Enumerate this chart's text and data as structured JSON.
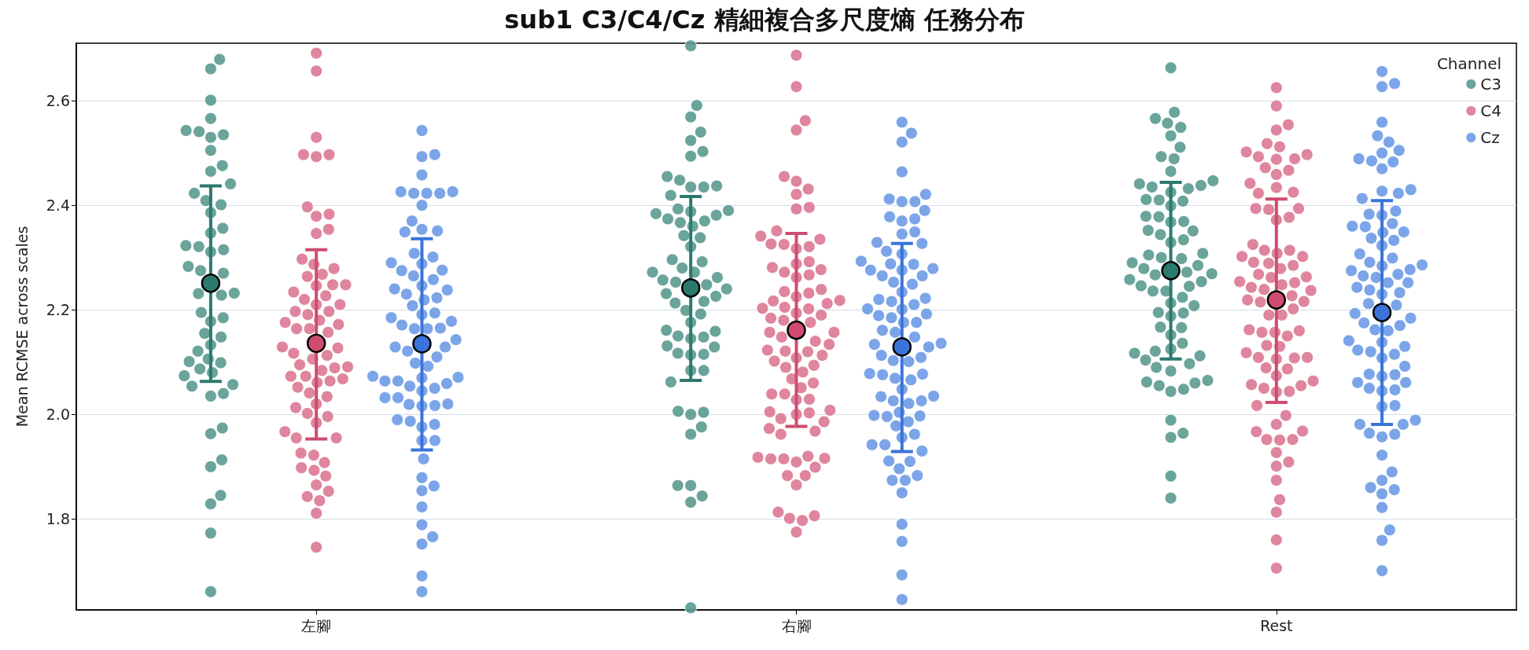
{
  "chart_data": {
    "type": "scatter",
    "title": "sub1 C3/C4/Cz 精細複合多尺度熵 任務分布",
    "ylabel": "Mean RCMSE across scales",
    "legend_title": "Channel",
    "legend": "top right",
    "grid": "y",
    "marker": "circle",
    "categories": [
      "左腳",
      "右腳",
      "Rest"
    ],
    "ylim": [
      1.626,
      2.71
    ],
    "yticks": [
      1.8,
      {
        "value": 2,
        "label": "2.0"
      },
      2.2,
      2.4,
      2.6
    ],
    "series": [
      {
        "name": "C3",
        "color": "#5a9a90",
        "x": [
          "左腳",
          "左腳",
          "左腳",
          "左腳",
          "左腳",
          "左腳",
          "左腳",
          "左腳",
          "左腳",
          "左腳",
          "左腳",
          "左腳",
          "左腳",
          "左腳",
          "左腳",
          "左腳",
          "左腳",
          "左腳",
          "左腳",
          "左腳",
          "左腳",
          "左腳",
          "左腳",
          "左腳",
          "左腳",
          "左腳",
          "左腳",
          "左腳",
          "左腳",
          "左腳",
          "左腳",
          "左腳",
          "左腳",
          "左腳",
          "左腳",
          "左腳",
          "左腳",
          "左腳",
          "左腳",
          "左腳",
          "左腳",
          "左腳",
          "左腳",
          "左腳",
          "左腳",
          "左腳",
          "左腳",
          "左腳",
          "左腳",
          "左腳",
          "左腳",
          "左腳",
          "左腳",
          "右腳",
          "右腳",
          "右腳",
          "右腳",
          "右腳",
          "右腳",
          "右腳",
          "右腳",
          "右腳",
          "右腳",
          "右腳",
          "右腳",
          "右腳",
          "右腳",
          "右腳",
          "右腳",
          "右腳",
          "右腳",
          "右腳",
          "右腳",
          "右腳",
          "右腳",
          "右腳",
          "右腳",
          "右腳",
          "右腳",
          "右腳",
          "右腳",
          "右腳",
          "右腳",
          "右腳",
          "右腳",
          "右腳",
          "右腳",
          "右腳",
          "右腳",
          "右腳",
          "右腳",
          "右腳",
          "右腳",
          "右腳",
          "右腳",
          "右腳",
          "右腳",
          "右腳",
          "右腳",
          "右腳",
          "右腳",
          "右腳",
          "右腳",
          "右腳",
          "右腳",
          "右腳",
          "右腳",
          "右腳",
          "右腳",
          "右腳",
          "右腳",
          "右腳",
          "右腳",
          "右腳",
          "右腳",
          "右腳",
          "右腳",
          "右腳",
          "Rest",
          "Rest",
          "Rest",
          "Rest",
          "Rest",
          "Rest",
          "Rest",
          "Rest",
          "Rest",
          "Rest",
          "Rest",
          "Rest",
          "Rest",
          "Rest",
          "Rest",
          "Rest",
          "Rest",
          "Rest",
          "Rest",
          "Rest",
          "Rest",
          "Rest",
          "Rest",
          "Rest",
          "Rest",
          "Rest",
          "Rest",
          "Rest",
          "Rest",
          "Rest",
          "Rest",
          "Rest",
          "Rest",
          "Rest",
          "Rest",
          "Rest",
          "Rest",
          "Rest",
          "Rest",
          "Rest",
          "Rest",
          "Rest",
          "Rest",
          "Rest",
          "Rest",
          "Rest",
          "Rest",
          "Rest",
          "Rest",
          "Rest",
          "Rest",
          "Rest",
          "Rest",
          "Rest",
          "Rest",
          "Rest",
          "Rest",
          "Rest",
          "Rest",
          "Rest",
          "Rest",
          "Rest",
          "Rest",
          "Rest",
          "Rest",
          "Rest",
          "Rest",
          "Rest",
          "Rest",
          "Rest",
          "Rest",
          "Rest",
          "Rest",
          "Rest"
        ],
        "values": [
          2.679,
          2.661,
          2.601,
          2.566,
          2.541,
          2.543,
          2.535,
          2.53,
          2.505,
          2.476,
          2.465,
          2.441,
          2.423,
          2.401,
          2.409,
          2.386,
          2.356,
          2.347,
          2.323,
          2.321,
          2.315,
          2.311,
          2.283,
          2.275,
          2.27,
          2.232,
          2.231,
          2.228,
          2.195,
          2.185,
          2.178,
          2.155,
          2.148,
          2.133,
          2.121,
          2.106,
          2.099,
          2.101,
          2.087,
          2.08,
          2.074,
          2.057,
          2.054,
          2.035,
          2.04,
          1.963,
          1.974,
          1.913,
          1.9,
          1.845,
          1.829,
          1.773,
          1.661,
          2.705,
          2.591,
          2.569,
          2.54,
          2.524,
          2.503,
          2.494,
          2.419,
          2.455,
          2.448,
          2.437,
          2.435,
          2.435,
          2.393,
          2.388,
          2.384,
          2.381,
          2.374,
          2.37,
          2.39,
          2.367,
          2.36,
          2.342,
          2.338,
          2.321,
          2.292,
          2.296,
          2.272,
          2.272,
          2.28,
          2.262,
          2.257,
          2.253,
          2.248,
          2.24,
          2.226,
          2.231,
          2.216,
          2.213,
          2.199,
          2.192,
          2.176,
          2.161,
          2.15,
          2.145,
          2.148,
          2.159,
          2.129,
          2.131,
          2.117,
          2.115,
          2.114,
          2.084,
          2.084,
          2.062,
          2.0,
          2.006,
          2.004,
          1.976,
          1.962,
          1.864,
          1.864,
          1.844,
          1.832,
          1.63,
          2.663,
          2.578,
          2.566,
          2.557,
          2.549,
          2.533,
          2.511,
          2.493,
          2.489,
          2.465,
          2.447,
          2.441,
          2.435,
          2.438,
          2.432,
          2.425,
          2.411,
          2.408,
          2.41,
          2.399,
          2.379,
          2.378,
          2.369,
          2.368,
          2.351,
          2.352,
          2.344,
          2.334,
          2.329,
          2.308,
          2.305,
          2.298,
          2.3,
          2.285,
          2.29,
          2.279,
          2.272,
          2.269,
          2.267,
          2.258,
          2.254,
          2.245,
          2.246,
          2.236,
          2.236,
          2.224,
          2.213,
          2.208,
          2.195,
          2.188,
          2.194,
          2.166,
          2.167,
          2.152,
          2.136,
          2.125,
          2.121,
          2.112,
          2.117,
          2.104,
          2.097,
          2.09,
          2.083,
          2.065,
          2.062,
          2.06,
          2.055,
          2.048,
          2.044,
          1.989,
          1.964,
          1.956,
          1.882,
          1.84
        ]
      },
      {
        "name": "C4",
        "color": "#dc7893",
        "x": [
          "左腳",
          "左腳",
          "左腳",
          "左腳",
          "左腳",
          "左腳",
          "左腳",
          "左腳",
          "左腳",
          "左腳",
          "左腳",
          "左腳",
          "左腳",
          "左腳",
          "左腳",
          "左腳",
          "左腳",
          "左腳",
          "左腳",
          "左腳",
          "左腳",
          "左腳",
          "左腳",
          "左腳",
          "左腳",
          "左腳",
          "左腳",
          "左腳",
          "左腳",
          "左腳",
          "左腳",
          "左腳",
          "左腳",
          "左腳",
          "左腳",
          "左腳",
          "左腳",
          "左腳",
          "左腳",
          "左腳",
          "左腳",
          "左腳",
          "左腳",
          "左腳",
          "左腳",
          "左腳",
          "左腳",
          "左腳",
          "左腳",
          "左腳",
          "左腳",
          "左腳",
          "左腳",
          "左腳",
          "左腳",
          "左腳",
          "左腳",
          "左腳",
          "左腳",
          "左腳",
          "左腳",
          "左腳",
          "左腳",
          "左腳",
          "左腳",
          "左腳",
          "左腳",
          "左腳",
          "左腳",
          "左腳",
          "右腳",
          "右腳",
          "右腳",
          "右腳",
          "右腳",
          "右腳",
          "右腳",
          "右腳",
          "右腳",
          "右腳",
          "右腳",
          "右腳",
          "右腳",
          "右腳",
          "右腳",
          "右腳",
          "右腳",
          "右腳",
          "右腳",
          "右腳",
          "右腳",
          "右腳",
          "右腳",
          "右腳",
          "右腳",
          "右腳",
          "右腳",
          "右腳",
          "右腳",
          "右腳",
          "右腳",
          "右腳",
          "右腳",
          "右腳",
          "右腳",
          "右腳",
          "右腳",
          "右腳",
          "右腳",
          "右腳",
          "右腳",
          "右腳",
          "右腳",
          "右腳",
          "右腳",
          "右腳",
          "右腳",
          "右腳",
          "右腳",
          "右腳",
          "右腳",
          "右腳",
          "右腳",
          "右腳",
          "右腳",
          "右腳",
          "右腳",
          "右腳",
          "右腳",
          "右腳",
          "右腳",
          "右腳",
          "右腳",
          "右腳",
          "右腳",
          "右腳",
          "右腳",
          "右腳",
          "右腳",
          "右腳",
          "右腳",
          "右腳",
          "右腳",
          "右腳",
          "右腳",
          "右腳",
          "右腳",
          "右腳",
          "右腳",
          "右腳",
          "右腳",
          "右腳",
          "右腳",
          "右腳",
          "Rest",
          "Rest",
          "Rest",
          "Rest",
          "Rest",
          "Rest",
          "Rest",
          "Rest",
          "Rest",
          "Rest",
          "Rest",
          "Rest",
          "Rest",
          "Rest",
          "Rest",
          "Rest",
          "Rest",
          "Rest",
          "Rest",
          "Rest",
          "Rest",
          "Rest",
          "Rest",
          "Rest",
          "Rest",
          "Rest",
          "Rest",
          "Rest",
          "Rest",
          "Rest",
          "Rest",
          "Rest",
          "Rest",
          "Rest",
          "Rest",
          "Rest",
          "Rest",
          "Rest",
          "Rest",
          "Rest",
          "Rest",
          "Rest",
          "Rest",
          "Rest",
          "Rest",
          "Rest",
          "Rest",
          "Rest",
          "Rest",
          "Rest",
          "Rest",
          "Rest",
          "Rest",
          "Rest",
          "Rest",
          "Rest",
          "Rest",
          "Rest",
          "Rest",
          "Rest",
          "Rest",
          "Rest",
          "Rest",
          "Rest",
          "Rest",
          "Rest",
          "Rest",
          "Rest",
          "Rest",
          "Rest",
          "Rest",
          "Rest",
          "Rest",
          "Rest",
          "Rest",
          "Rest",
          "Rest",
          "Rest",
          "Rest",
          "Rest",
          "Rest",
          "Rest",
          "Rest",
          "Rest",
          "Rest",
          "Rest"
        ],
        "values": [
          2.691,
          2.657,
          2.53,
          2.497,
          2.493,
          2.497,
          2.397,
          2.379,
          2.383,
          2.354,
          2.346,
          2.297,
          2.287,
          2.279,
          2.268,
          2.264,
          2.248,
          2.248,
          2.246,
          2.234,
          2.227,
          2.22,
          2.21,
          2.21,
          2.197,
          2.197,
          2.191,
          2.176,
          2.18,
          2.172,
          2.164,
          2.164,
          2.157,
          2.129,
          2.127,
          2.113,
          2.117,
          2.106,
          2.095,
          2.091,
          2.089,
          2.084,
          2.061,
          2.064,
          2.073,
          2.073,
          2.068,
          2.052,
          2.041,
          2.034,
          2.02,
          2.013,
          2.002,
          1.996,
          1.984,
          1.967,
          1.955,
          1.955,
          1.926,
          1.922,
          1.908,
          1.893,
          1.898,
          1.882,
          1.865,
          1.853,
          1.843,
          1.835,
          1.811,
          1.746,
          2.687,
          2.627,
          2.562,
          2.544,
          2.446,
          2.455,
          2.431,
          2.421,
          2.396,
          2.393,
          2.351,
          2.335,
          2.341,
          2.325,
          2.326,
          2.317,
          2.321,
          2.292,
          2.288,
          2.277,
          2.281,
          2.272,
          2.267,
          2.262,
          2.239,
          2.232,
          2.235,
          2.225,
          2.218,
          2.217,
          2.212,
          2.205,
          2.202,
          2.203,
          2.194,
          2.19,
          2.184,
          2.18,
          2.176,
          2.157,
          2.157,
          2.148,
          2.134,
          2.14,
          2.121,
          2.123,
          2.12,
          2.108,
          2.113,
          2.102,
          2.094,
          2.09,
          2.081,
          2.068,
          2.06,
          2.051,
          2.039,
          2.039,
          2.029,
          2.028,
          2.003,
          2.0,
          2.005,
          2.008,
          1.992,
          1.986,
          1.973,
          1.968,
          1.962,
          1.918,
          1.915,
          1.92,
          1.916,
          1.909,
          1.915,
          1.899,
          1.883,
          1.883,
          1.865,
          1.813,
          1.806,
          1.801,
          1.797,
          1.775,
          2.625,
          2.59,
          2.554,
          2.544,
          2.512,
          2.518,
          2.502,
          2.493,
          2.497,
          2.488,
          2.489,
          2.467,
          2.472,
          2.459,
          2.442,
          2.434,
          2.423,
          2.425,
          2.394,
          2.392,
          2.394,
          2.377,
          2.372,
          2.325,
          2.314,
          2.308,
          2.314,
          2.302,
          2.302,
          2.291,
          2.289,
          2.285,
          2.279,
          2.262,
          2.268,
          2.263,
          2.254,
          2.252,
          2.248,
          2.239,
          2.243,
          2.237,
          2.227,
          2.216,
          2.215,
          2.219,
          2.202,
          2.19,
          2.19,
          2.16,
          2.157,
          2.162,
          2.15,
          2.157,
          2.132,
          2.118,
          2.13,
          2.109,
          2.106,
          2.108,
          2.109,
          2.089,
          2.087,
          2.074,
          2.064,
          2.057,
          2.05,
          2.055,
          2.044,
          2.043,
          2.017,
          1.998,
          1.981,
          1.967,
          1.968,
          1.952,
          1.952,
          1.951,
          1.927,
          1.909,
          1.901,
          1.874,
          1.837,
          1.813,
          1.76,
          1.706
        ]
      },
      {
        "name": "Cz",
        "color": "#6d9be6",
        "x": [
          "左腳",
          "左腳",
          "左腳",
          "左腳",
          "左腳",
          "左腳",
          "左腳",
          "左腳",
          "左腳",
          "左腳",
          "左腳",
          "左腳",
          "左腳",
          "左腳",
          "左腳",
          "左腳",
          "左腳",
          "左腳",
          "左腳",
          "左腳",
          "左腳",
          "左腳",
          "左腳",
          "左腳",
          "左腳",
          "左腳",
          "左腳",
          "左腳",
          "左腳",
          "左腳",
          "左腳",
          "左腳",
          "左腳",
          "左腳",
          "左腳",
          "左腳",
          "左腳",
          "左腳",
          "左腳",
          "左腳",
          "左腳",
          "左腳",
          "左腳",
          "左腳",
          "左腳",
          "左腳",
          "左腳",
          "左腳",
          "左腳",
          "左腳",
          "左腳",
          "左腳",
          "左腳",
          "左腳",
          "左腳",
          "左腳",
          "左腳",
          "左腳",
          "左腳",
          "左腳",
          "左腳",
          "左腳",
          "左腳",
          "左腳",
          "左腳",
          "左腳",
          "左腳",
          "左腳",
          "左腳",
          "左腳",
          "左腳",
          "左腳",
          "左腳",
          "左腳",
          "左腳",
          "右腳",
          "右腳",
          "右腳",
          "右腳",
          "右腳",
          "右腳",
          "右腳",
          "右腳",
          "右腳",
          "右腳",
          "右腳",
          "右腳",
          "右腳",
          "右腳",
          "右腳",
          "右腳",
          "右腳",
          "右腳",
          "右腳",
          "右腳",
          "右腳",
          "右腳",
          "右腳",
          "右腳",
          "右腳",
          "右腳",
          "右腳",
          "右腳",
          "右腳",
          "右腳",
          "右腳",
          "右腳",
          "右腳",
          "右腳",
          "右腳",
          "右腳",
          "右腳",
          "右腳",
          "右腳",
          "右腳",
          "右腳",
          "右腳",
          "右腳",
          "右腳",
          "右腳",
          "右腳",
          "右腳",
          "右腳",
          "右腳",
          "右腳",
          "右腳",
          "右腳",
          "右腳",
          "右腳",
          "右腳",
          "右腳",
          "右腳",
          "右腳",
          "右腳",
          "右腳",
          "右腳",
          "右腳",
          "右腳",
          "右腳",
          "右腳",
          "右腳",
          "右腳",
          "右腳",
          "右腳",
          "右腳",
          "右腳",
          "右腳",
          "右腳",
          "右腳",
          "右腳",
          "右腳",
          "右腳",
          "右腳",
          "右腳",
          "右腳",
          "右腳",
          "右腳",
          "右腳",
          "Rest",
          "Rest",
          "Rest",
          "Rest",
          "Rest",
          "Rest",
          "Rest",
          "Rest",
          "Rest",
          "Rest",
          "Rest",
          "Rest",
          "Rest",
          "Rest",
          "Rest",
          "Rest",
          "Rest",
          "Rest",
          "Rest",
          "Rest",
          "Rest",
          "Rest",
          "Rest",
          "Rest",
          "Rest",
          "Rest",
          "Rest",
          "Rest",
          "Rest",
          "Rest",
          "Rest",
          "Rest",
          "Rest",
          "Rest",
          "Rest",
          "Rest",
          "Rest",
          "Rest",
          "Rest",
          "Rest",
          "Rest",
          "Rest",
          "Rest",
          "Rest",
          "Rest",
          "Rest",
          "Rest",
          "Rest",
          "Rest",
          "Rest",
          "Rest",
          "Rest",
          "Rest",
          "Rest",
          "Rest",
          "Rest",
          "Rest",
          "Rest",
          "Rest",
          "Rest",
          "Rest",
          "Rest",
          "Rest",
          "Rest",
          "Rest",
          "Rest",
          "Rest",
          "Rest",
          "Rest",
          "Rest",
          "Rest",
          "Rest",
          "Rest",
          "Rest",
          "Rest",
          "Rest",
          "Rest",
          "Rest",
          "Rest",
          "Rest",
          "Rest",
          "Rest",
          "Rest",
          "Rest",
          "Rest"
        ],
        "values": [
          2.543,
          2.497,
          2.493,
          2.458,
          2.423,
          2.426,
          2.423,
          2.423,
          2.426,
          2.4,
          2.37,
          2.349,
          2.354,
          2.351,
          2.301,
          2.308,
          2.288,
          2.29,
          2.275,
          2.276,
          2.265,
          2.258,
          2.246,
          2.24,
          2.238,
          2.23,
          2.219,
          2.223,
          2.208,
          2.194,
          2.191,
          2.185,
          2.178,
          2.171,
          2.164,
          2.165,
          2.164,
          2.143,
          2.129,
          2.129,
          2.121,
          2.11,
          2.098,
          2.092,
          2.071,
          2.073,
          2.07,
          2.064,
          2.064,
          2.054,
          2.05,
          2.045,
          2.059,
          2.032,
          2.032,
          2.019,
          2.02,
          2.016,
          2.017,
          1.981,
          1.987,
          1.99,
          1.976,
          1.95,
          1.95,
          1.915,
          1.879,
          1.863,
          1.854,
          1.823,
          1.789,
          1.766,
          1.752,
          1.691,
          1.661,
          2.559,
          2.538,
          2.521,
          2.464,
          2.407,
          2.412,
          2.421,
          2.407,
          2.39,
          2.378,
          2.374,
          2.37,
          2.345,
          2.349,
          2.327,
          2.329,
          2.312,
          2.307,
          2.288,
          2.287,
          2.293,
          2.279,
          2.276,
          2.276,
          2.265,
          2.265,
          2.253,
          2.249,
          2.234,
          2.222,
          2.216,
          2.22,
          2.21,
          2.202,
          2.201,
          2.192,
          2.189,
          2.185,
          2.176,
          2.176,
          2.161,
          2.157,
          2.148,
          2.136,
          2.134,
          2.129,
          2.113,
          2.109,
          2.103,
          2.101,
          2.078,
          2.077,
          2.076,
          2.069,
          2.066,
          2.048,
          2.035,
          2.034,
          2.026,
          2.026,
          2.021,
          2.004,
          1.996,
          1.998,
          1.997,
          1.986,
          1.978,
          1.962,
          1.956,
          1.942,
          1.942,
          1.93,
          1.91,
          1.911,
          1.896,
          1.883,
          1.874,
          1.874,
          1.85,
          1.79,
          1.757,
          1.693,
          1.646,
          2.656,
          2.627,
          2.633,
          2.559,
          2.533,
          2.521,
          2.505,
          2.5,
          2.489,
          2.483,
          2.485,
          2.47,
          2.427,
          2.423,
          2.43,
          2.413,
          2.381,
          2.389,
          2.383,
          2.36,
          2.365,
          2.359,
          2.348,
          2.349,
          2.337,
          2.333,
          2.323,
          2.307,
          2.299,
          2.291,
          2.286,
          2.284,
          2.277,
          2.275,
          2.268,
          2.265,
          2.262,
          2.252,
          2.252,
          2.238,
          2.243,
          2.233,
          2.23,
          2.209,
          2.212,
          2.193,
          2.184,
          2.175,
          2.17,
          2.16,
          2.162,
          2.141,
          2.138,
          2.13,
          2.12,
          2.123,
          2.115,
          2.108,
          2.092,
          2.077,
          2.073,
          2.076,
          2.061,
          2.061,
          2.05,
          2.045,
          2.047,
          2.017,
          2.015,
          1.989,
          1.981,
          1.981,
          1.962,
          1.964,
          1.957,
          1.922,
          1.89,
          1.874,
          1.856,
          1.86,
          1.848,
          1.822,
          1.779,
          1.759,
          1.701
        ]
      },
      {
        "color": "#2c7a6e",
        "x": [
          "左腳",
          "右腳",
          "Rest"
        ],
        "values": [
          2.251,
          2.242,
          2.275
        ],
        "errors": [
          [
            2.063,
            2.437
          ],
          [
            2.065,
            2.417
          ],
          [
            2.106,
            2.444
          ]
        ]
      },
      {
        "color": "#cf4c70",
        "x": [
          "左腳",
          "右腳",
          "Rest"
        ],
        "values": [
          2.136,
          2.161,
          2.219
        ],
        "errors": [
          [
            1.953,
            2.315
          ],
          [
            1.977,
            2.346
          ],
          [
            2.023,
            2.412
          ]
        ]
      },
      {
        "color": "#3a74da",
        "x": [
          "左腳",
          "右腳",
          "Rest"
        ],
        "values": [
          2.135,
          2.129,
          2.195
        ],
        "errors": [
          [
            1.932,
            2.336
          ],
          [
            1.929,
            2.327
          ],
          [
            1.981,
            2.409
          ]
        ]
      }
    ]
  }
}
